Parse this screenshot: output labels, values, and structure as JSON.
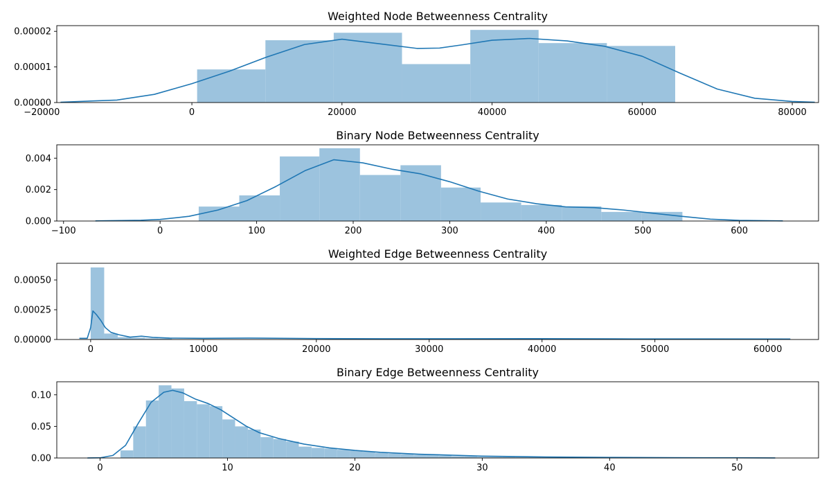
{
  "chart_data": [
    {
      "type": "bar",
      "subtype": "histogram-with-kde",
      "title": "Weighted Node Betweenness Centrality",
      "xlim": [
        -18000,
        83500
      ],
      "ylim": [
        0,
        2.16e-05
      ],
      "xticks": [
        -20000,
        0,
        20000,
        40000,
        60000,
        80000
      ],
      "xtick_labels": [
        "−20000",
        "0",
        "20000",
        "40000",
        "60000",
        "80000"
      ],
      "yticks": [
        0,
        1e-05,
        2e-05
      ],
      "ytick_labels": [
        "0.00000",
        "0.00001",
        "0.00002"
      ],
      "bins": [
        {
          "x0": 700,
          "x1": 9800,
          "height": 9.3e-06
        },
        {
          "x0": 9800,
          "x1": 18900,
          "height": 1.75e-05
        },
        {
          "x0": 18900,
          "x1": 28000,
          "height": 1.96e-05
        },
        {
          "x0": 28000,
          "x1": 37100,
          "height": 1.08e-05
        },
        {
          "x0": 37100,
          "x1": 46200,
          "height": 2.04e-05
        },
        {
          "x0": 46200,
          "x1": 55300,
          "height": 1.67e-05
        },
        {
          "x0": 55300,
          "x1": 64400,
          "height": 1.59e-05
        }
      ],
      "kde": {
        "x": [
          -17500,
          -10000,
          -5000,
          0,
          5000,
          10000,
          15000,
          20000,
          25000,
          30000,
          33000,
          36000,
          40000,
          45000,
          50000,
          55000,
          60000,
          65000,
          70000,
          75000,
          80000,
          83000
        ],
        "y": [
          1e-07,
          7e-07,
          2.3e-06,
          5.3e-06,
          8.8e-06,
          1.28e-05,
          1.63e-05,
          1.78e-05,
          1.65e-05,
          1.52e-05,
          1.53e-05,
          1.62e-05,
          1.75e-05,
          1.8e-05,
          1.73e-05,
          1.58e-05,
          1.3e-05,
          8.3e-06,
          3.8e-06,
          1.2e-06,
          3e-07,
          1e-07
        ]
      },
      "colors": {
        "bars": "#9cc3de",
        "line": "#1f77b4"
      }
    },
    {
      "type": "bar",
      "subtype": "histogram-with-kde",
      "title": "Binary Node Betweenness Centrality",
      "xlim": [
        -107,
        682
      ],
      "ylim": [
        0,
        0.00485
      ],
      "xticks": [
        -100,
        0,
        100,
        200,
        300,
        400,
        500,
        600
      ],
      "xtick_labels": [
        "−100",
        "0",
        "100",
        "200",
        "300",
        "400",
        "500",
        "600"
      ],
      "yticks": [
        0,
        0.002,
        0.004
      ],
      "ytick_labels": [
        "0.000",
        "0.002",
        "0.004"
      ],
      "bins": [
        {
          "x0": 40,
          "x1": 82,
          "height": 0.00092
        },
        {
          "x0": 82,
          "x1": 124,
          "height": 0.00163
        },
        {
          "x0": 124,
          "x1": 165,
          "height": 0.00411
        },
        {
          "x0": 165,
          "x1": 207,
          "height": 0.00463
        },
        {
          "x0": 207,
          "x1": 249,
          "height": 0.00293
        },
        {
          "x0": 249,
          "x1": 291,
          "height": 0.00355
        },
        {
          "x0": 291,
          "x1": 332,
          "height": 0.00213
        },
        {
          "x0": 332,
          "x1": 374,
          "height": 0.00118
        },
        {
          "x0": 374,
          "x1": 416,
          "height": 0.00102
        },
        {
          "x0": 416,
          "x1": 457,
          "height": 0.00093
        },
        {
          "x0": 457,
          "x1": 499,
          "height": 0.00058
        },
        {
          "x0": 499,
          "x1": 541,
          "height": 0.00058
        }
      ],
      "kde": {
        "x": [
          -67,
          -20,
          0,
          30,
          60,
          90,
          120,
          150,
          180,
          210,
          240,
          270,
          300,
          330,
          360,
          390,
          420,
          450,
          480,
          510,
          540,
          570,
          600,
          645
        ],
        "y": [
          1e-05,
          5e-05,
          0.0001,
          0.0003,
          0.0007,
          0.0013,
          0.0022,
          0.0032,
          0.0039,
          0.0037,
          0.0033,
          0.003,
          0.0025,
          0.0019,
          0.0014,
          0.0011,
          0.0009,
          0.00085,
          0.0007,
          0.0005,
          0.0003,
          0.00012,
          4e-05,
          1e-05
        ]
      },
      "colors": {
        "bars": "#9cc3de",
        "line": "#1f77b4"
      }
    },
    {
      "type": "bar",
      "subtype": "histogram-with-kde",
      "title": "Weighted Edge Betweenness Centrality",
      "xlim": [
        -3000,
        64500
      ],
      "ylim": [
        0,
        0.00064
      ],
      "xticks": [
        0,
        10000,
        20000,
        30000,
        40000,
        50000,
        60000
      ],
      "xtick_labels": [
        "0",
        "10000",
        "20000",
        "30000",
        "40000",
        "50000",
        "60000"
      ],
      "yticks": [
        0,
        0.00025,
        0.0005
      ],
      "ytick_labels": [
        "0.00000",
        "0.00025",
        "0.00050"
      ],
      "bins": [
        {
          "x0": 0,
          "x1": 1200,
          "height": 0.000605
        },
        {
          "x0": 1200,
          "x1": 2400,
          "height": 5e-05
        },
        {
          "x0": 2400,
          "x1": 3600,
          "height": 2e-05
        },
        {
          "x0": 3600,
          "x1": 4800,
          "height": 1.5e-05
        },
        {
          "x0": 4800,
          "x1": 6000,
          "height": 1e-05
        },
        {
          "x0": 6000,
          "x1": 7200,
          "height": 8e-06
        }
      ],
      "kde": {
        "x": [
          -1000,
          -300,
          0,
          200,
          500,
          900,
          1300,
          1800,
          2500,
          3500,
          4500,
          5500,
          7000,
          10000,
          14000,
          20000,
          26000,
          32000,
          40000,
          48000,
          55000,
          62000
        ],
        "y": [
          1e-05,
          1e-05,
          0.0001,
          0.00024,
          0.00021,
          0.00016,
          0.0001,
          6e-05,
          4e-05,
          2e-05,
          2.8e-05,
          1.8e-05,
          1.2e-05,
          1e-05,
          1.2e-05,
          8e-06,
          6e-06,
          6e-06,
          7e-06,
          5e-06,
          5e-06,
          4e-06
        ]
      },
      "colors": {
        "bars": "#9cc3de",
        "line": "#1f77b4"
      }
    },
    {
      "type": "bar",
      "subtype": "histogram-with-kde",
      "title": "Binary Edge Betweenness Centrality",
      "xlim": [
        -3.4,
        56.4
      ],
      "ylim": [
        0,
        0.1206
      ],
      "xticks": [
        0,
        10,
        20,
        30,
        40,
        50
      ],
      "xtick_labels": [
        "0",
        "10",
        "20",
        "30",
        "40",
        "50"
      ],
      "yticks": [
        0,
        0.05,
        0.1
      ],
      "ytick_labels": [
        "0.00",
        "0.05",
        "0.10"
      ],
      "bins": [
        {
          "x0": 1.6,
          "x1": 2.6,
          "height": 0.012
        },
        {
          "x0": 2.6,
          "x1": 3.6,
          "height": 0.05
        },
        {
          "x0": 3.6,
          "x1": 4.6,
          "height": 0.091
        },
        {
          "x0": 4.6,
          "x1": 5.6,
          "height": 0.115
        },
        {
          "x0": 5.6,
          "x1": 6.6,
          "height": 0.11
        },
        {
          "x0": 6.6,
          "x1": 7.6,
          "height": 0.09
        },
        {
          "x0": 7.6,
          "x1": 8.6,
          "height": 0.085
        },
        {
          "x0": 8.6,
          "x1": 9.6,
          "height": 0.082
        },
        {
          "x0": 9.6,
          "x1": 10.6,
          "height": 0.061
        },
        {
          "x0": 10.6,
          "x1": 11.6,
          "height": 0.05
        },
        {
          "x0": 11.6,
          "x1": 12.6,
          "height": 0.045
        },
        {
          "x0": 12.6,
          "x1": 13.6,
          "height": 0.033
        },
        {
          "x0": 13.6,
          "x1": 14.6,
          "height": 0.03
        },
        {
          "x0": 14.6,
          "x1": 15.6,
          "height": 0.026
        },
        {
          "x0": 15.6,
          "x1": 16.6,
          "height": 0.018
        },
        {
          "x0": 16.6,
          "x1": 17.6,
          "height": 0.016
        },
        {
          "x0": 17.6,
          "x1": 18.6,
          "height": 0.015
        },
        {
          "x0": 18.6,
          "x1": 19.6,
          "height": 0.013
        },
        {
          "x0": 19.6,
          "x1": 20.6,
          "height": 0.012
        },
        {
          "x0": 20.6,
          "x1": 21.6,
          "height": 0.01
        },
        {
          "x0": 21.6,
          "x1": 22.6,
          "height": 0.008
        },
        {
          "x0": 22.6,
          "x1": 23.6,
          "height": 0.007
        },
        {
          "x0": 23.6,
          "x1": 24.6,
          "height": 0.006
        },
        {
          "x0": 24.6,
          "x1": 25.6,
          "height": 0.005
        },
        {
          "x0": 25.6,
          "x1": 26.6,
          "height": 0.005
        },
        {
          "x0": 26.6,
          "x1": 27.6,
          "height": 0.004
        },
        {
          "x0": 27.6,
          "x1": 28.6,
          "height": 0.003
        },
        {
          "x0": 28.6,
          "x1": 29.6,
          "height": 0.003
        },
        {
          "x0": 29.6,
          "x1": 30.6,
          "height": 0.002
        },
        {
          "x0": 30.6,
          "x1": 31.6,
          "height": 0.002
        },
        {
          "x0": 31.6,
          "x1": 32.6,
          "height": 0.002
        },
        {
          "x0": 32.6,
          "x1": 33.6,
          "height": 0.0015
        },
        {
          "x0": 33.6,
          "x1": 34.6,
          "height": 0.0012
        },
        {
          "x0": 34.6,
          "x1": 35.6,
          "height": 0.001
        },
        {
          "x0": 35.6,
          "x1": 36.6,
          "height": 0.001
        },
        {
          "x0": 36.6,
          "x1": 37.6,
          "height": 0.0008
        },
        {
          "x0": 37.6,
          "x1": 38.6,
          "height": 0.0007
        },
        {
          "x0": 38.6,
          "x1": 39.6,
          "height": 0.0006
        },
        {
          "x0": 39.6,
          "x1": 40.6,
          "height": 0.0005
        }
      ],
      "kde": {
        "x": [
          -1,
          0,
          1,
          2,
          3,
          4,
          5,
          5.7,
          6.5,
          7.5,
          8.5,
          9.5,
          10.5,
          11.5,
          12.5,
          14,
          16,
          18,
          20,
          22,
          25,
          30,
          35,
          40,
          45,
          50,
          53
        ],
        "y": [
          0,
          0.0003,
          0.004,
          0.02,
          0.055,
          0.088,
          0.104,
          0.107,
          0.103,
          0.093,
          0.086,
          0.076,
          0.063,
          0.05,
          0.04,
          0.031,
          0.022,
          0.016,
          0.012,
          0.009,
          0.006,
          0.003,
          0.0016,
          0.0009,
          0.0005,
          0.0003,
          0.0001
        ]
      },
      "colors": {
        "bars": "#9cc3de",
        "line": "#1f77b4"
      }
    }
  ]
}
